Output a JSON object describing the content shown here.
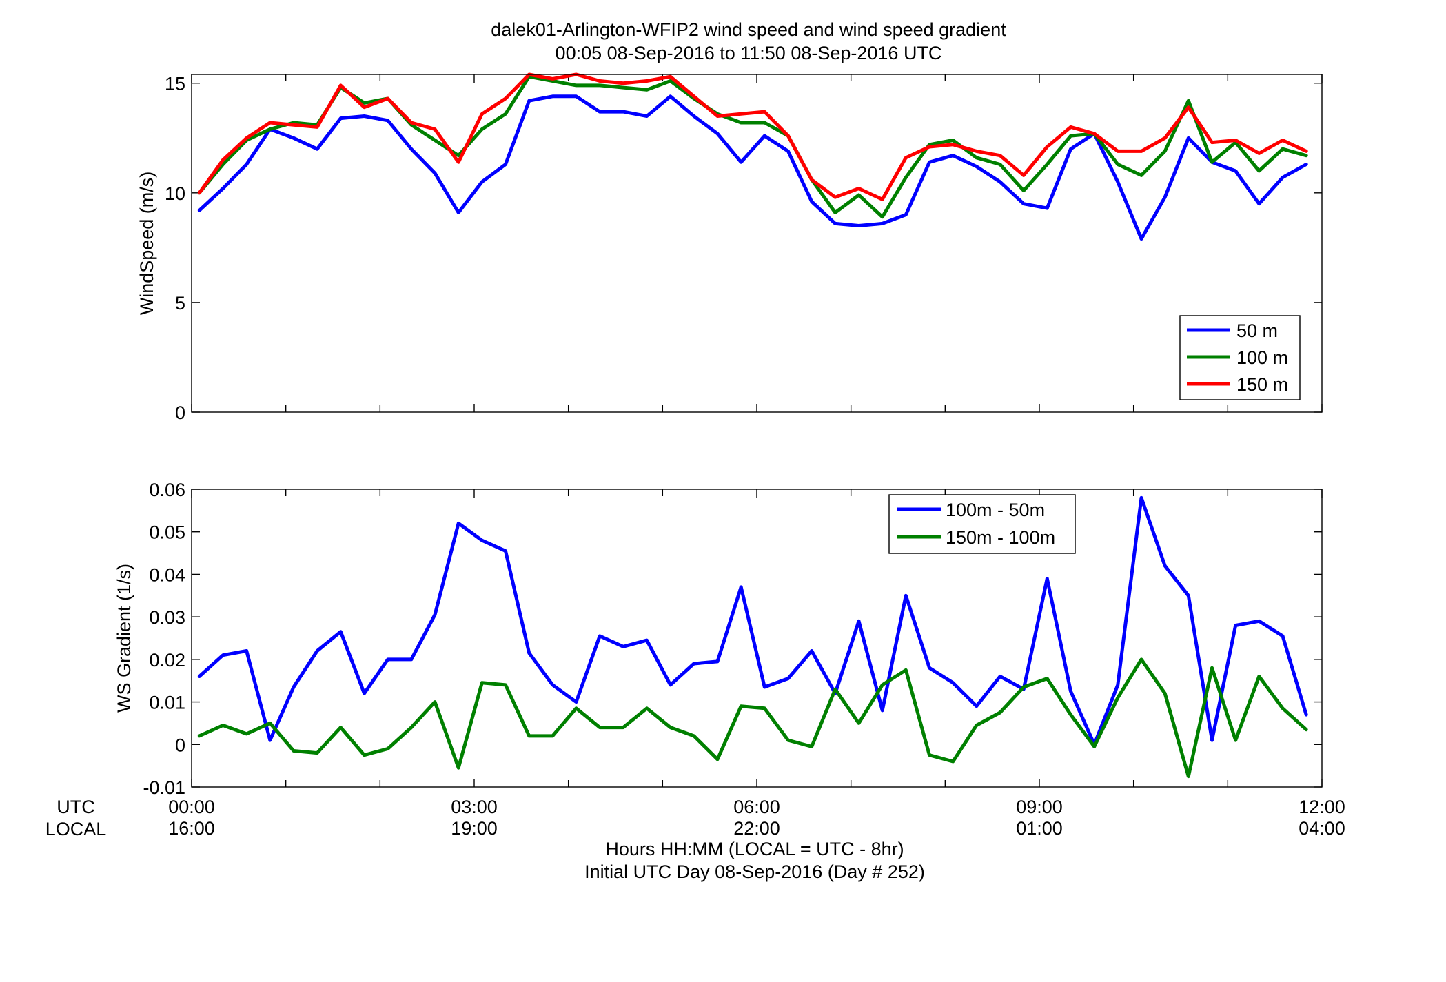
{
  "chart_data": {
    "title": [
      "dalek01-Arlington-WFIP2  wind speed and wind speed gradient",
      "00:05 08-Sep-2016 to 11:50 08-Sep-2016  UTC"
    ],
    "xlabel": [
      "Hours HH:MM  (LOCAL = UTC - 8hr)",
      "Initial UTC Day 08-Sep-2016 (Day # 252)"
    ],
    "xlim": [
      0,
      12
    ],
    "x_ticks": [
      0,
      3,
      6,
      9,
      12
    ],
    "x_tick_labels_utc": [
      "00:00",
      "03:00",
      "06:00",
      "09:00",
      "12:00"
    ],
    "x_tick_labels_local": [
      "16:00",
      "19:00",
      "22:00",
      "01:00",
      "04:00"
    ],
    "x_row_labels": [
      "UTC",
      "LOCAL"
    ],
    "x": [
      0.083,
      0.333,
      0.583,
      0.833,
      1.083,
      1.333,
      1.583,
      1.833,
      2.083,
      2.333,
      2.583,
      2.833,
      3.083,
      3.333,
      3.583,
      3.833,
      4.083,
      4.333,
      4.583,
      4.833,
      5.083,
      5.333,
      5.583,
      5.833,
      6.083,
      6.333,
      6.583,
      6.833,
      7.083,
      7.333,
      7.583,
      7.833,
      8.083,
      8.333,
      8.583,
      8.833,
      9.083,
      9.333,
      9.583,
      9.833,
      10.083,
      10.333,
      10.583,
      10.833,
      11.083,
      11.333,
      11.583,
      11.833
    ],
    "charts": [
      {
        "type": "line",
        "ylabel": "WindSpeed (m/s)",
        "ylim": [
          0,
          15.4
        ],
        "y_ticks": [
          0,
          5,
          10,
          15
        ],
        "y_tick_labels": [
          "0",
          "5",
          "10",
          "15"
        ],
        "legend_position": "bottom-right",
        "series": [
          {
            "name": "50 m",
            "color": "#0000ff",
            "values": [
              9.2,
              10.2,
              11.3,
              12.9,
              12.5,
              12.0,
              13.4,
              13.5,
              13.3,
              12.0,
              10.9,
              9.1,
              10.5,
              11.3,
              14.2,
              14.4,
              14.4,
              13.7,
              13.7,
              13.5,
              14.4,
              13.5,
              12.7,
              11.4,
              12.6,
              11.9,
              9.6,
              8.6,
              8.5,
              8.6,
              9.0,
              11.4,
              11.7,
              11.2,
              10.5,
              9.5,
              9.3,
              12.0,
              12.7,
              10.5,
              7.9,
              9.8,
              12.5,
              11.4,
              11.0,
              9.5,
              10.7,
              11.3
            ]
          },
          {
            "name": "100 m",
            "color": "#008000",
            "values": [
              10.0,
              11.3,
              12.4,
              12.9,
              13.2,
              13.1,
              14.8,
              14.1,
              14.3,
              13.1,
              12.4,
              11.7,
              12.9,
              13.6,
              15.3,
              15.1,
              14.9,
              14.9,
              14.8,
              14.7,
              15.1,
              14.3,
              13.6,
              13.2,
              13.2,
              12.6,
              10.6,
              9.1,
              9.9,
              8.9,
              10.7,
              12.2,
              12.4,
              11.6,
              11.3,
              10.1,
              11.3,
              12.6,
              12.7,
              11.3,
              10.8,
              11.9,
              14.2,
              11.4,
              12.3,
              11.0,
              12.0,
              11.7
            ]
          },
          {
            "name": "150 m",
            "color": "#ff0000",
            "values": [
              10.0,
              11.5,
              12.5,
              13.2,
              13.1,
              13.0,
              14.9,
              13.9,
              14.3,
              13.2,
              12.9,
              11.4,
              13.6,
              14.3,
              15.4,
              15.2,
              15.4,
              15.1,
              15.0,
              15.1,
              15.3,
              14.4,
              13.5,
              13.6,
              13.7,
              12.6,
              10.6,
              9.8,
              10.2,
              9.7,
              11.6,
              12.1,
              12.2,
              11.9,
              11.7,
              10.8,
              12.1,
              13.0,
              12.7,
              11.9,
              11.9,
              12.5,
              13.9,
              12.3,
              12.4,
              11.8,
              12.4,
              11.9
            ]
          }
        ]
      },
      {
        "type": "line",
        "ylabel": "WS Gradient (1/s)",
        "ylim": [
          -0.01,
          0.06
        ],
        "y_ticks": [
          -0.01,
          0,
          0.01,
          0.02,
          0.03,
          0.04,
          0.05,
          0.06
        ],
        "y_tick_labels": [
          "-0.01",
          "0",
          "0.01",
          "0.02",
          "0.03",
          "0.04",
          "0.05",
          "0.06"
        ],
        "legend_position": "top-right",
        "series": [
          {
            "name": "100m - 50m",
            "color": "#0000ff",
            "values": [
              0.016,
              0.021,
              0.022,
              0.001,
              0.0135,
              0.022,
              0.0265,
              0.012,
              0.02,
              0.02,
              0.0305,
              0.052,
              0.048,
              0.0455,
              0.0215,
              0.014,
              0.01,
              0.0255,
              0.023,
              0.0245,
              0.014,
              0.019,
              0.0195,
              0.037,
              0.0135,
              0.0155,
              0.022,
              0.012,
              0.029,
              0.008,
              0.035,
              0.018,
              0.0145,
              0.009,
              0.016,
              0.013,
              0.039,
              0.0125,
              0.0,
              0.014,
              0.058,
              0.042,
              0.035,
              0.001,
              0.028,
              0.029,
              0.0255,
              0.007
            ]
          },
          {
            "name": "150m - 100m",
            "color": "#008000",
            "values": [
              0.002,
              0.0045,
              0.0025,
              0.005,
              -0.0015,
              -0.002,
              0.004,
              -0.0025,
              -0.001,
              0.004,
              0.01,
              -0.0055,
              0.0145,
              0.014,
              0.002,
              0.002,
              0.0085,
              0.004,
              0.004,
              0.0085,
              0.004,
              0.002,
              -0.0035,
              0.009,
              0.0085,
              0.001,
              -0.0005,
              0.013,
              0.005,
              0.014,
              0.0175,
              -0.0025,
              -0.004,
              0.0045,
              0.0075,
              0.0135,
              0.0155,
              0.007,
              -0.0005,
              0.011,
              0.02,
              0.012,
              -0.0075,
              0.018,
              0.001,
              0.016,
              0.0085,
              0.0035
            ]
          }
        ]
      }
    ]
  }
}
